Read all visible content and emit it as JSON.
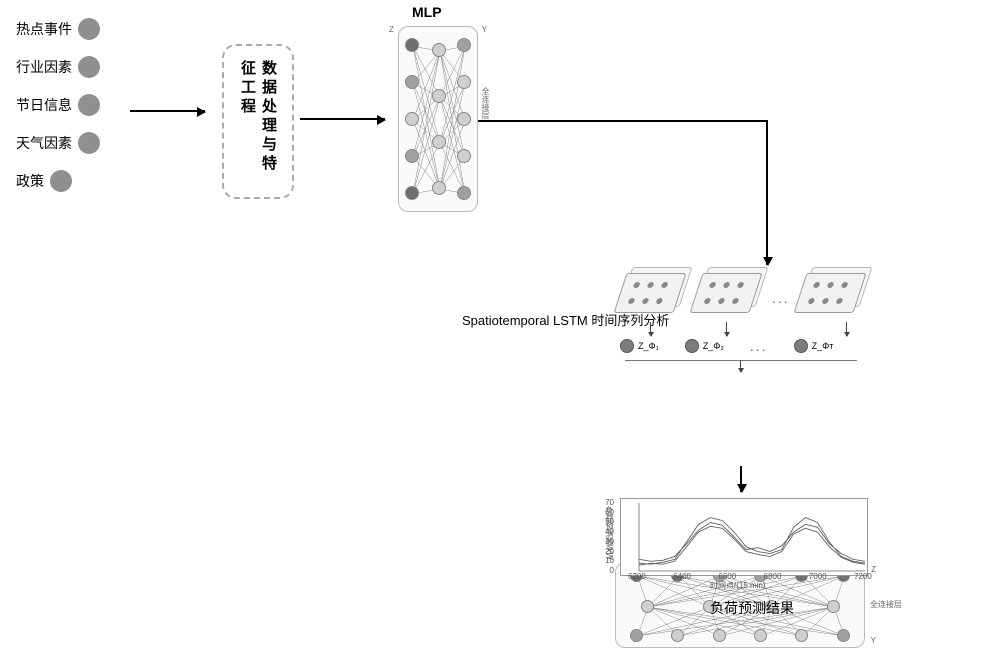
{
  "inputs": {
    "items": [
      {
        "label": "热点事件"
      },
      {
        "label": "行业因素"
      },
      {
        "label": "节日信息"
      },
      {
        "label": "天气因素"
      },
      {
        "label": "政策"
      }
    ],
    "dot_color": "#8f8f8f"
  },
  "preprocess_box": {
    "label": "数据处理与特征工程"
  },
  "mlp": {
    "title": "MLP",
    "side_label": "全连接层",
    "input_nodes": 5,
    "hidden_nodes": 4,
    "output_nodes": 5,
    "node_colors": {
      "dark": "#6f6f6f",
      "mid": "#a0a0a0",
      "light": "#cfcfcf"
    },
    "border_color": "#bbbbbb",
    "bg": "#fafafa",
    "io_letters": {
      "in": "Z",
      "out": "Y"
    }
  },
  "lstm": {
    "label": "Spatiotemporal LSTM 时间序列分析",
    "blocks": 3,
    "out_labels": [
      "Z_Φ₁",
      "Z_Φ₂",
      "Z_Φᴛ"
    ],
    "ellipsis": "..."
  },
  "fc2": {
    "label": "全连接层",
    "top_nodes": 6,
    "hidden_nodes": 4,
    "bottom_nodes": 6,
    "letters": {
      "top": "Z",
      "bottom": "Y"
    }
  },
  "result": {
    "label": "负荷预测结果",
    "x_axis_label": "时间点/(15 min)",
    "y_axis_label": "负荷预测值/kW",
    "x_ticks": [
      "6200",
      "6400",
      "6600",
      "6800",
      "7000",
      "7200"
    ],
    "y_ticks": [
      "0",
      "10",
      "20",
      "30",
      "40",
      "50",
      "60",
      "70"
    ],
    "xlim": [
      6200,
      7200
    ],
    "ylim": [
      0,
      70
    ],
    "line_color": "#606060",
    "bg": "#ffffff",
    "series": [
      [
        8,
        7,
        9,
        12,
        30,
        48,
        55,
        52,
        40,
        25,
        20,
        18,
        22,
        45,
        55,
        50,
        30,
        15,
        10,
        8
      ],
      [
        12,
        10,
        11,
        15,
        28,
        42,
        50,
        47,
        35,
        22,
        24,
        20,
        26,
        40,
        48,
        45,
        28,
        18,
        12,
        10
      ],
      [
        6,
        8,
        7,
        10,
        25,
        40,
        46,
        44,
        33,
        20,
        17,
        15,
        20,
        38,
        44,
        40,
        25,
        14,
        9,
        7
      ]
    ]
  },
  "colors": {
    "arrow": "#000000",
    "dashed_border": "#aaaaaa",
    "text": "#000000"
  }
}
